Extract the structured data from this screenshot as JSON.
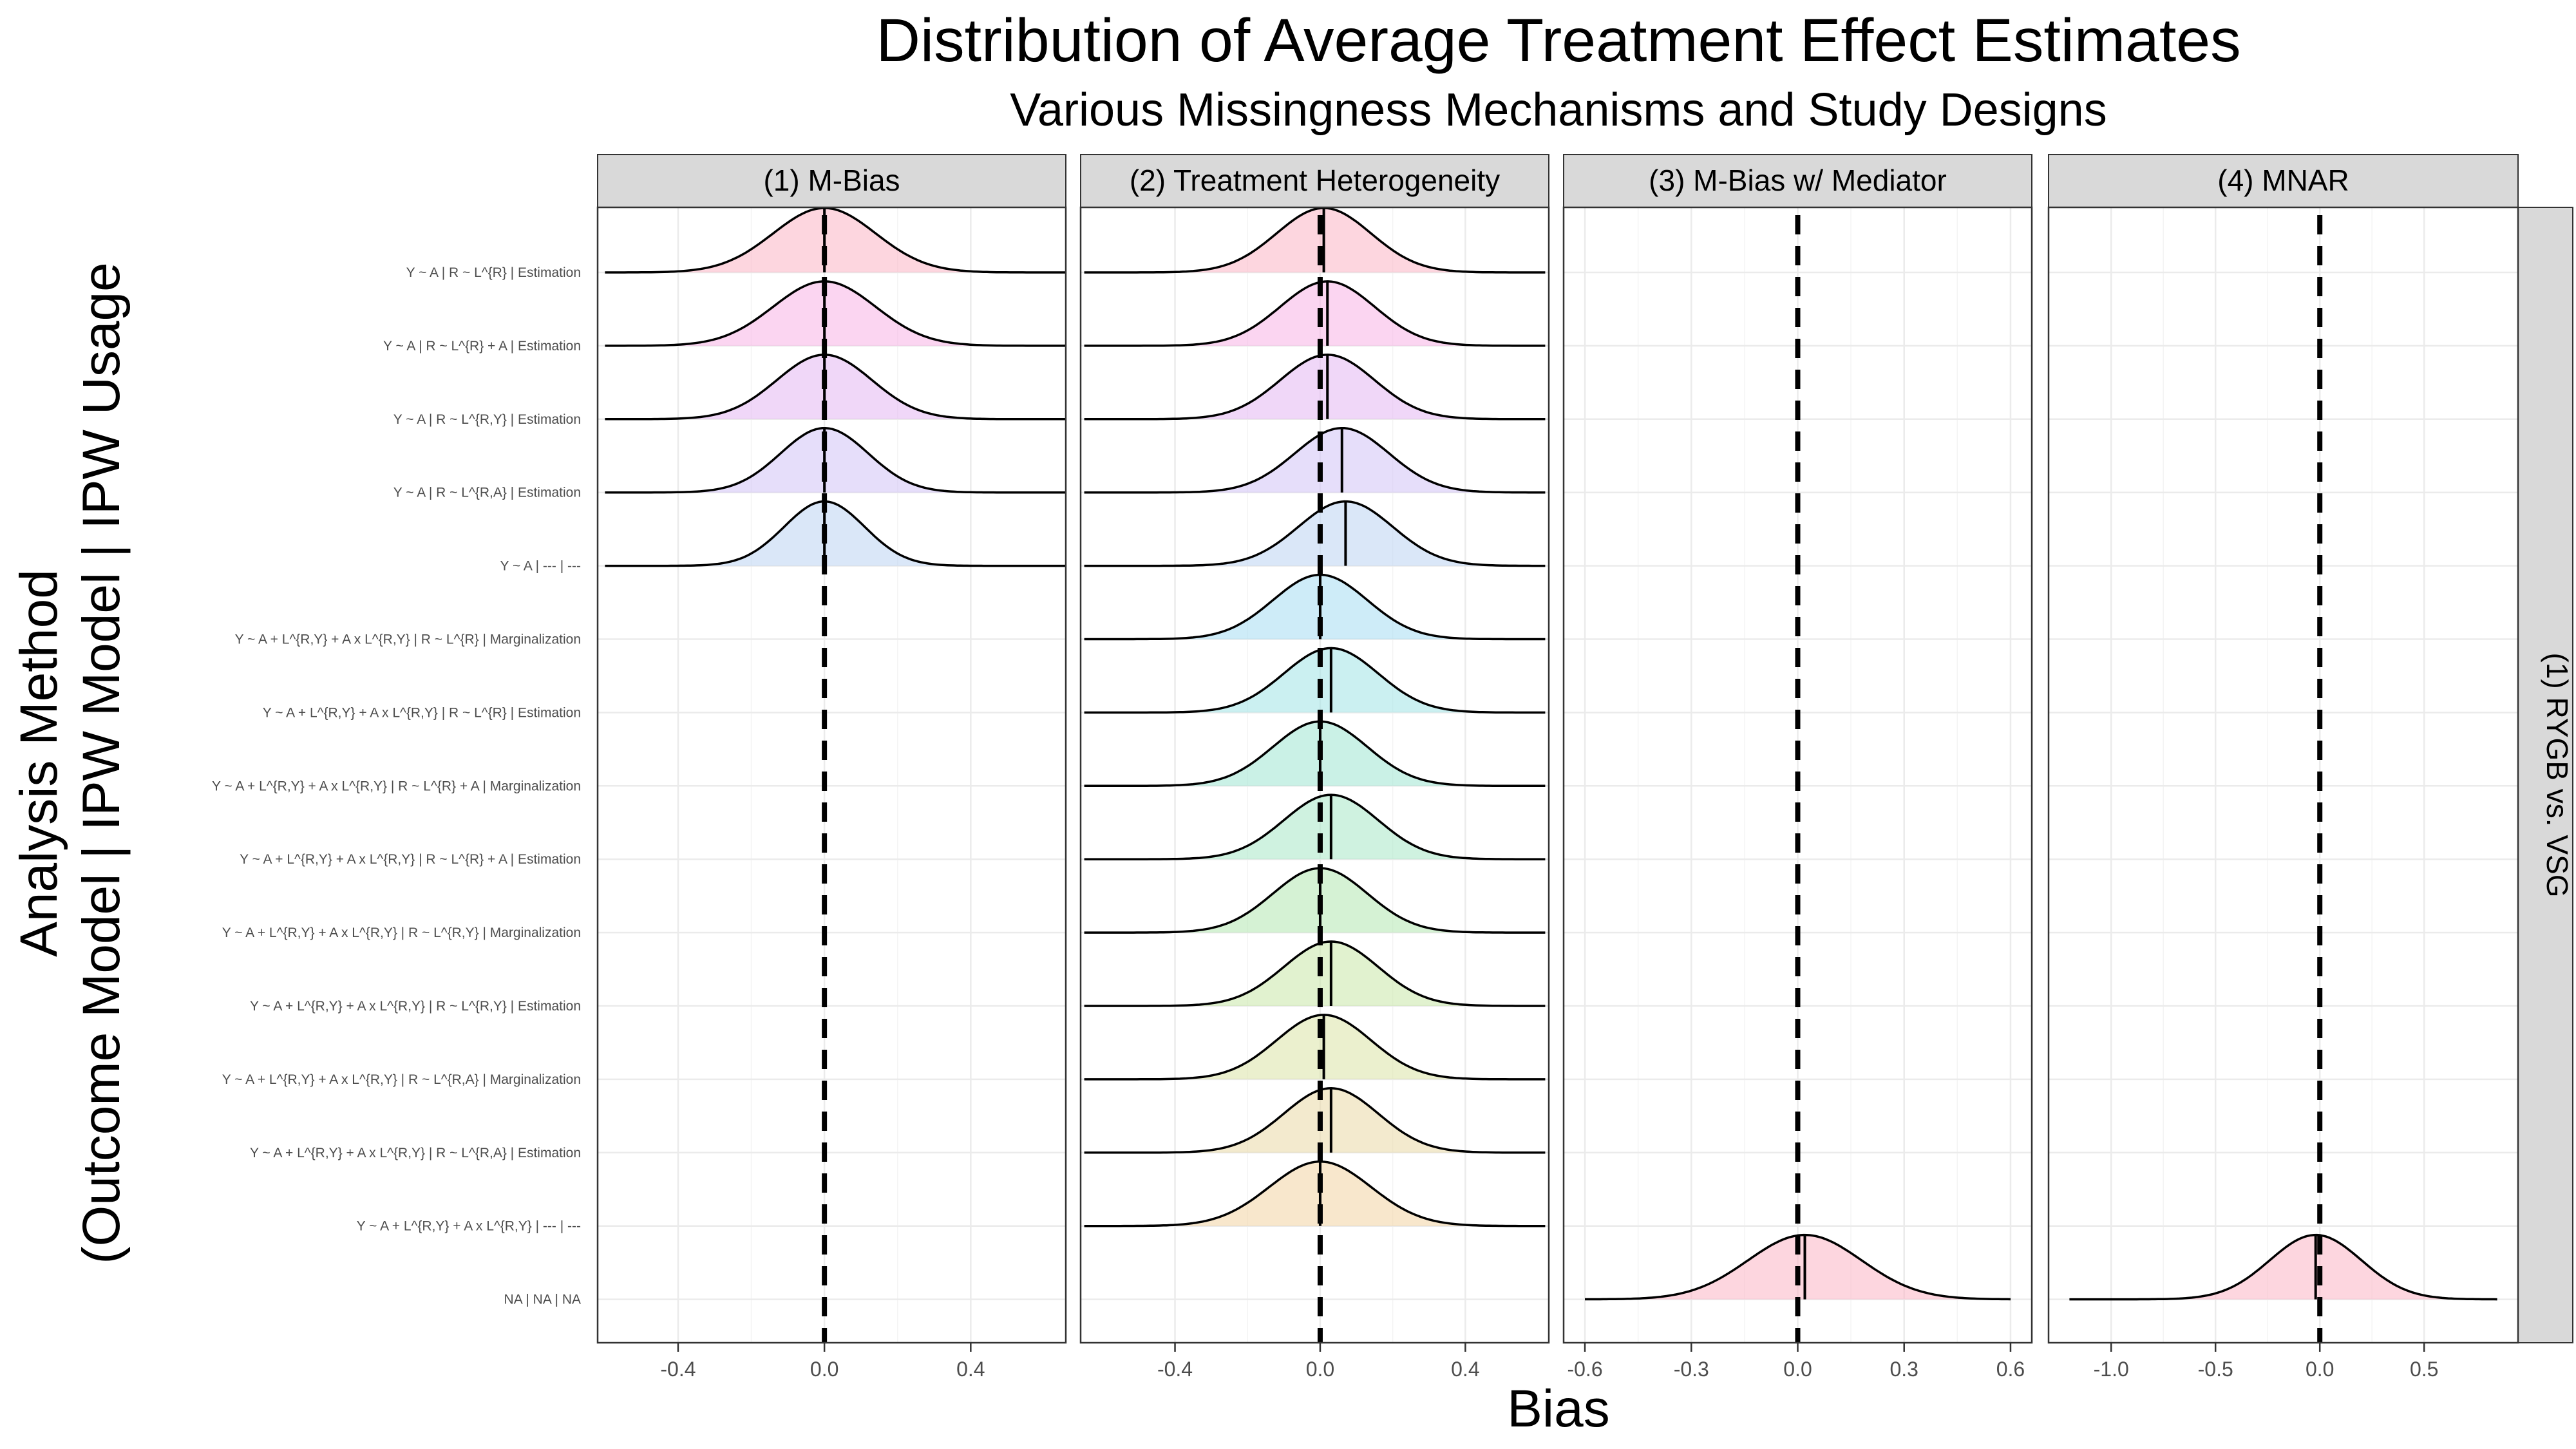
{
  "chart_data": {
    "type": "ridgeline",
    "title": "Distribution of Average Treatment Effect Estimates",
    "subtitle": "Various Missingness Mechanisms and Study Designs",
    "xlabel": "Bias",
    "ylabel_line1": "Analysis Method",
    "ylabel_line2": "(Outcome Model | IPW Model | IPW Usage",
    "row_strip": "(1) RYGB vs. VSG",
    "reference_line_x": 0,
    "grid": true,
    "categories": [
      "Y ~ A | R ~ L^{R} | Estimation",
      "Y ~ A | R ~ L^{R} + A | Estimation",
      "Y ~ A | R ~ L^{R,Y} | Estimation",
      "Y ~ A | R ~ L^{R,A} | Estimation",
      "Y ~ A | --- | ---",
      "Y ~ A + L^{R,Y} + A x L^{R,Y} | R ~ L^{R} | Marginalization",
      "Y ~ A + L^{R,Y} + A x L^{R,Y} | R ~ L^{R} | Estimation",
      "Y ~ A + L^{R,Y} + A x L^{R,Y} | R ~ L^{R} + A | Marginalization",
      "Y ~ A + L^{R,Y} + A x L^{R,Y} | R ~ L^{R} + A | Estimation",
      "Y ~ A + L^{R,Y} + A x L^{R,Y} | R ~ L^{R,Y} | Marginalization",
      "Y ~ A + L^{R,Y} + A x L^{R,Y} | R ~ L^{R,Y} | Estimation",
      "Y ~ A + L^{R,Y} + A x L^{R,Y} | R ~ L^{R,A} | Marginalization",
      "Y ~ A + L^{R,Y} + A x L^{R,Y} | R ~ L^{R,A} | Estimation",
      "Y ~ A + L^{R,Y} + A x L^{R,Y} | --- | ---",
      "NA | NA | NA"
    ],
    "colors": [
      "#fbb4c4",
      "#f7b2e6",
      "#e3b7f2",
      "#d2c2f5",
      "#bcd3f3",
      "#a6dcf2",
      "#a1e3e6",
      "#9fe6d2",
      "#a8e8c6",
      "#b3e8b1",
      "#c9e8a8",
      "#dbe3a6",
      "#ead9a6",
      "#f2d4a3",
      "#fbb4c4"
    ],
    "panels": [
      {
        "label": "(1) M-Bias",
        "xlim": [
          -0.62,
          0.66
        ],
        "ticks": [
          -0.4,
          0.0,
          0.4
        ],
        "tick_labels": [
          "-0.4",
          "0.0",
          "0.4"
        ],
        "series": [
          {
            "row": 0,
            "mean": 0.0,
            "sd": 0.14,
            "min": -0.6,
            "max": 0.66
          },
          {
            "row": 1,
            "mean": 0.0,
            "sd": 0.14,
            "min": -0.6,
            "max": 0.66
          },
          {
            "row": 2,
            "mean": 0.0,
            "sd": 0.13,
            "min": -0.6,
            "max": 0.66
          },
          {
            "row": 3,
            "mean": 0.0,
            "sd": 0.12,
            "min": -0.6,
            "max": 0.66
          },
          {
            "row": 4,
            "mean": 0.0,
            "sd": 0.11,
            "min": -0.6,
            "max": 0.66
          }
        ]
      },
      {
        "label": "(2) Treatment Heterogeneity",
        "xlim": [
          -0.66,
          0.63
        ],
        "ticks": [
          -0.4,
          0.0,
          0.4
        ],
        "tick_labels": [
          "-0.4",
          "0.0",
          "0.4"
        ],
        "series": [
          {
            "row": 0,
            "mean": 0.01,
            "sd": 0.13,
            "min": -0.65,
            "max": 0.62
          },
          {
            "row": 1,
            "mean": 0.02,
            "sd": 0.13,
            "min": -0.65,
            "max": 0.62
          },
          {
            "row": 2,
            "mean": 0.02,
            "sd": 0.13,
            "min": -0.65,
            "max": 0.62
          },
          {
            "row": 3,
            "mean": 0.06,
            "sd": 0.13,
            "min": -0.65,
            "max": 0.62
          },
          {
            "row": 4,
            "mean": 0.07,
            "sd": 0.13,
            "min": -0.65,
            "max": 0.62
          },
          {
            "row": 5,
            "mean": 0.0,
            "sd": 0.13,
            "min": -0.65,
            "max": 0.62
          },
          {
            "row": 6,
            "mean": 0.03,
            "sd": 0.13,
            "min": -0.65,
            "max": 0.62
          },
          {
            "row": 7,
            "mean": 0.0,
            "sd": 0.13,
            "min": -0.65,
            "max": 0.62
          },
          {
            "row": 8,
            "mean": 0.03,
            "sd": 0.13,
            "min": -0.65,
            "max": 0.62
          },
          {
            "row": 9,
            "mean": 0.0,
            "sd": 0.13,
            "min": -0.65,
            "max": 0.62
          },
          {
            "row": 10,
            "mean": 0.03,
            "sd": 0.13,
            "min": -0.65,
            "max": 0.62
          },
          {
            "row": 11,
            "mean": 0.01,
            "sd": 0.13,
            "min": -0.65,
            "max": 0.62
          },
          {
            "row": 12,
            "mean": 0.03,
            "sd": 0.13,
            "min": -0.65,
            "max": 0.62
          },
          {
            "row": 13,
            "mean": 0.0,
            "sd": 0.14,
            "min": -0.65,
            "max": 0.62
          }
        ]
      },
      {
        "label": "(3) M-Bias w/ Mediator",
        "xlim": [
          -0.66,
          0.66
        ],
        "ticks": [
          -0.6,
          -0.3,
          0.0,
          0.3,
          0.6
        ],
        "tick_labels": [
          "-0.6",
          "-0.3",
          "0.0",
          "0.3",
          "0.6"
        ],
        "series": [
          {
            "row": 14,
            "mean": 0.02,
            "sd": 0.16,
            "min": -0.6,
            "max": 0.6
          }
        ]
      },
      {
        "label": "(4) MNAR",
        "xlim": [
          -1.3,
          0.95
        ],
        "ticks": [
          -1.0,
          -0.5,
          0.0,
          0.5
        ],
        "tick_labels": [
          "-1.0",
          "-0.5",
          "0.0",
          "0.5"
        ],
        "series": [
          {
            "row": 14,
            "mean": -0.02,
            "sd": 0.22,
            "min": -1.2,
            "max": 0.85
          }
        ]
      }
    ]
  }
}
